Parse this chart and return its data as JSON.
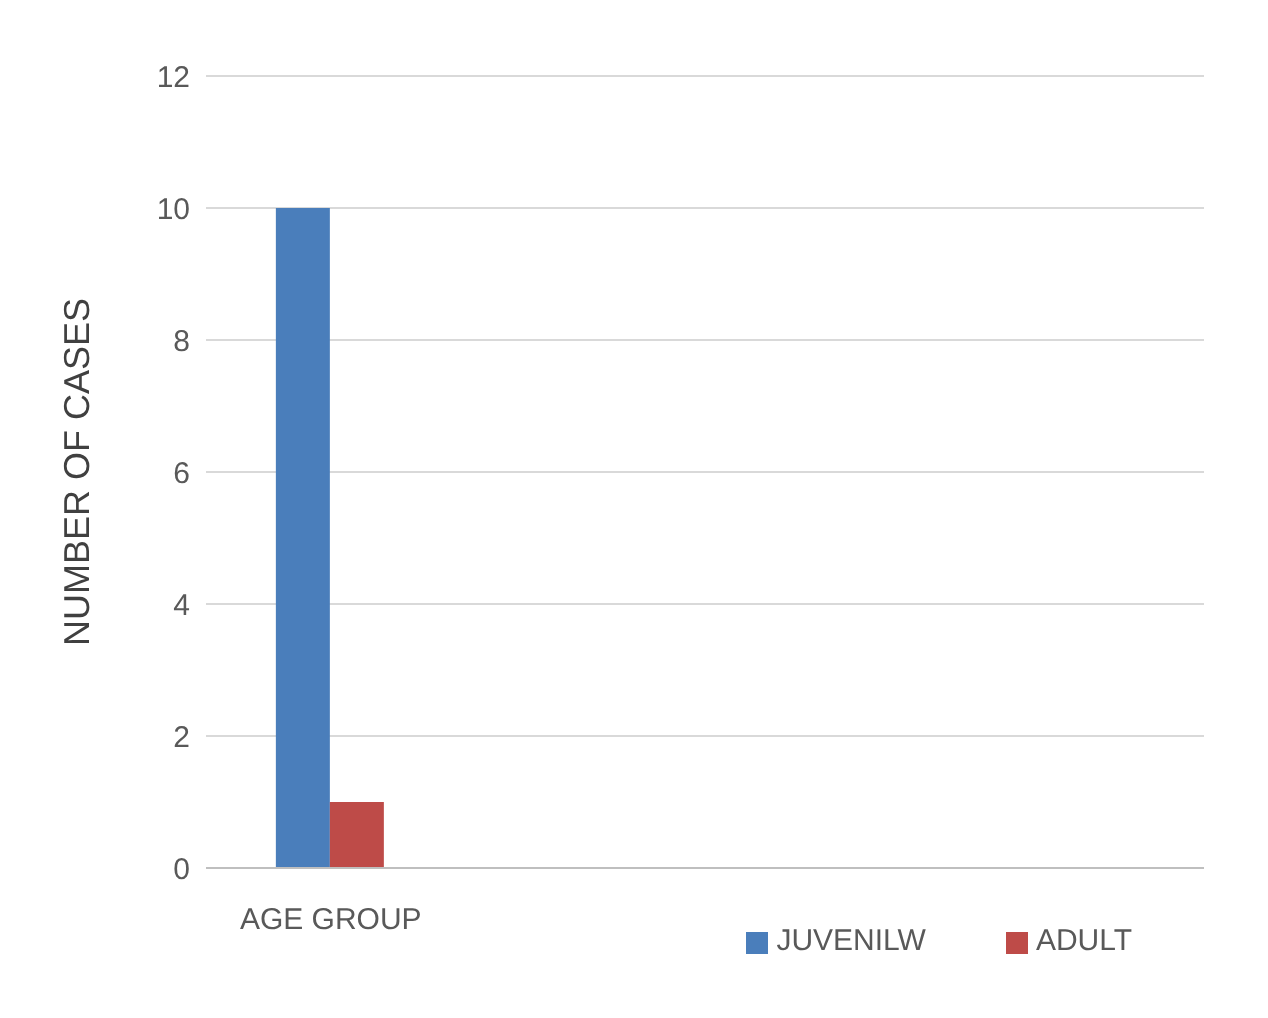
{
  "chart_data": {
    "type": "bar",
    "ylabel": "NUMBER OF CASES",
    "categories": [
      "AGE GROUP",
      null,
      null,
      null
    ],
    "series": [
      {
        "name": "JUVENILW",
        "color": "#4a7ebb",
        "values": [
          10,
          null,
          null,
          null
        ]
      },
      {
        "name": "ADULT",
        "color": "#be4b48",
        "values": [
          1,
          null,
          null,
          null
        ]
      }
    ],
    "ylim": [
      0,
      12
    ],
    "yticks": [
      0,
      2,
      4,
      6,
      8,
      10,
      12
    ],
    "grid": "y",
    "legend": "bottom right"
  }
}
